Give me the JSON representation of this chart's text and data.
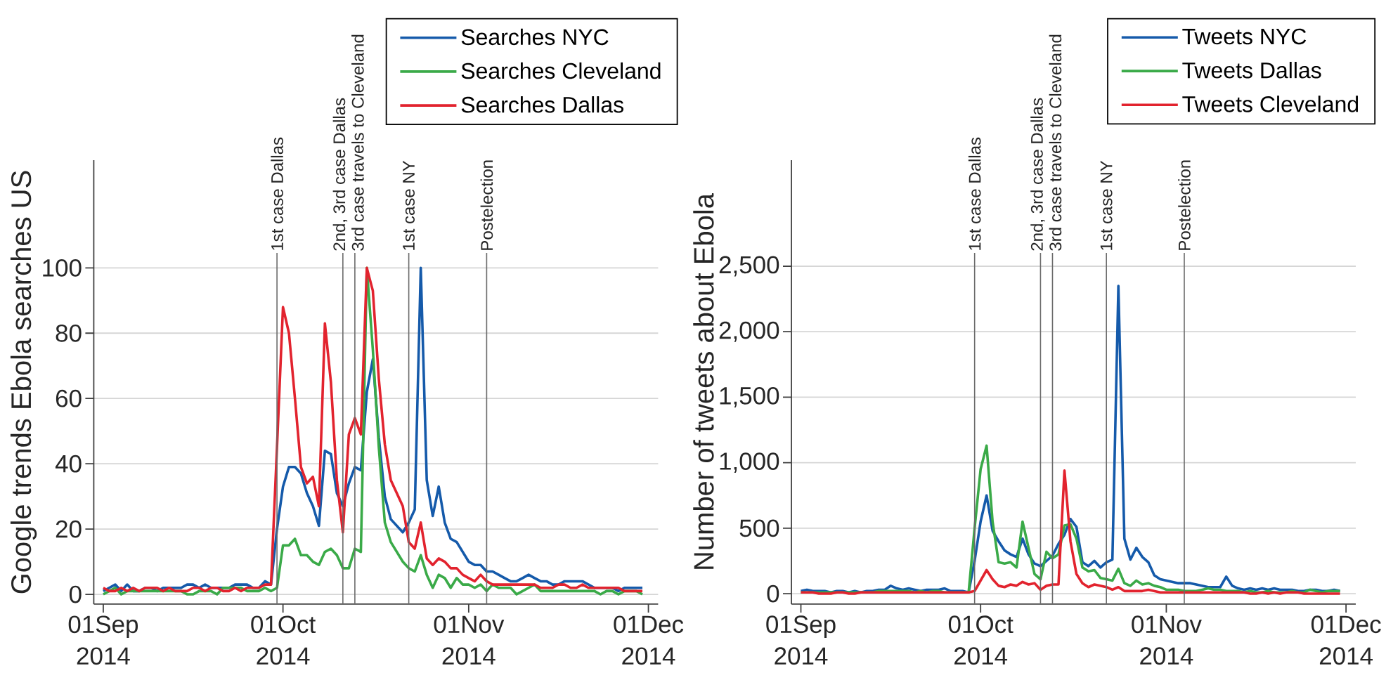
{
  "chart_data": [
    {
      "type": "line",
      "ylabel": "Google trends Ebola searches US",
      "x": [
        "2014-09-01",
        "2014-09-02",
        "2014-09-03",
        "2014-09-04",
        "2014-09-05",
        "2014-09-06",
        "2014-09-07",
        "2014-09-08",
        "2014-09-09",
        "2014-09-10",
        "2014-09-11",
        "2014-09-12",
        "2014-09-13",
        "2014-09-14",
        "2014-09-15",
        "2014-09-16",
        "2014-09-17",
        "2014-09-18",
        "2014-09-19",
        "2014-09-20",
        "2014-09-21",
        "2014-09-22",
        "2014-09-23",
        "2014-09-24",
        "2014-09-25",
        "2014-09-26",
        "2014-09-27",
        "2014-09-28",
        "2014-09-29",
        "2014-09-30",
        "2014-10-01",
        "2014-10-02",
        "2014-10-03",
        "2014-10-04",
        "2014-10-05",
        "2014-10-06",
        "2014-10-07",
        "2014-10-08",
        "2014-10-09",
        "2014-10-10",
        "2014-10-11",
        "2014-10-12",
        "2014-10-13",
        "2014-10-14",
        "2014-10-15",
        "2014-10-16",
        "2014-10-17",
        "2014-10-18",
        "2014-10-19",
        "2014-10-20",
        "2014-10-21",
        "2014-10-22",
        "2014-10-23",
        "2014-10-24",
        "2014-10-25",
        "2014-10-26",
        "2014-10-27",
        "2014-10-28",
        "2014-10-29",
        "2014-10-30",
        "2014-10-31",
        "2014-11-01",
        "2014-11-02",
        "2014-11-03",
        "2014-11-04",
        "2014-11-05",
        "2014-11-06",
        "2014-11-07",
        "2014-11-08",
        "2014-11-09",
        "2014-11-10",
        "2014-11-11",
        "2014-11-12",
        "2014-11-13",
        "2014-11-14",
        "2014-11-15",
        "2014-11-16",
        "2014-11-17",
        "2014-11-18",
        "2014-11-19",
        "2014-11-20",
        "2014-11-21",
        "2014-11-22",
        "2014-11-23",
        "2014-11-24",
        "2014-11-25",
        "2014-11-26",
        "2014-11-27",
        "2014-11-28",
        "2014-11-29",
        "2014-11-30"
      ],
      "series": [
        {
          "name": "Searches NYC",
          "color": "#155aaa",
          "values": [
            1,
            2,
            3,
            1,
            3,
            1,
            1,
            2,
            2,
            1,
            2,
            2,
            2,
            2,
            3,
            3,
            2,
            3,
            2,
            2,
            2,
            2,
            3,
            3,
            3,
            2,
            2,
            4,
            3,
            20,
            33,
            39,
            39,
            37,
            31,
            27,
            21,
            44,
            43,
            31,
            27,
            34,
            39,
            38,
            62,
            72,
            48,
            30,
            23,
            21,
            19,
            22,
            26,
            100,
            35,
            24,
            33,
            22,
            17,
            16,
            13,
            10,
            9,
            9,
            7,
            7,
            6,
            5,
            4,
            4,
            5,
            6,
            5,
            4,
            4,
            3,
            3,
            4,
            4,
            4,
            4,
            3,
            2,
            2,
            2,
            2,
            1,
            2,
            2,
            2,
            2
          ]
        },
        {
          "name": "Searches Cleveland",
          "color": "#3aaa48",
          "values": [
            0,
            1,
            2,
            0,
            1,
            1,
            1,
            1,
            1,
            1,
            1,
            1,
            1,
            1,
            0,
            0,
            1,
            1,
            1,
            0,
            2,
            2,
            2,
            2,
            1,
            1,
            1,
            2,
            1,
            2,
            15,
            15,
            17,
            12,
            12,
            10,
            9,
            13,
            14,
            12,
            8,
            8,
            14,
            13,
            100,
            75,
            45,
            22,
            16,
            13,
            10,
            8,
            7,
            12,
            6,
            2,
            6,
            5,
            2,
            5,
            3,
            3,
            2,
            3,
            1,
            3,
            2,
            2,
            2,
            0,
            1,
            2,
            3,
            1,
            1,
            1,
            1,
            1,
            1,
            1,
            1,
            1,
            1,
            0,
            1,
            1,
            0,
            1,
            1,
            1,
            0
          ]
        },
        {
          "name": "Searches Dallas",
          "color": "#e2232e",
          "values": [
            2,
            1,
            1,
            2,
            1,
            2,
            1,
            2,
            2,
            2,
            1,
            2,
            1,
            1,
            1,
            2,
            2,
            1,
            2,
            2,
            1,
            1,
            2,
            1,
            2,
            2,
            2,
            3,
            3,
            45,
            88,
            80,
            60,
            39,
            34,
            36,
            27,
            83,
            65,
            35,
            19,
            49,
            54,
            49,
            100,
            93,
            66,
            46,
            35,
            31,
            27,
            16,
            14,
            22,
            11,
            9,
            11,
            10,
            8,
            8,
            6,
            5,
            4,
            6,
            4,
            3,
            3,
            3,
            3,
            3,
            3,
            3,
            3,
            2,
            2,
            2,
            3,
            3,
            2,
            2,
            3,
            2,
            2,
            2,
            2,
            2,
            2,
            1,
            1,
            1,
            1
          ]
        }
      ],
      "xlim": [
        "2014-08-30T10:00",
        "2014-12-02T15:00"
      ],
      "ylim": [
        -3,
        133
      ],
      "xticks": [
        {
          "value": "2014-09-01",
          "label": "01Sep 2014"
        },
        {
          "value": "2014-10-01",
          "label": "01Oct 2014"
        },
        {
          "value": "2014-11-01",
          "label": "01Nov 2014"
        },
        {
          "value": "2014-12-01",
          "label": "01Dec 2014"
        }
      ],
      "yticks": [
        0,
        20,
        40,
        60,
        80,
        100
      ],
      "grid": "y",
      "legend": "top right",
      "ref_lines": [
        {
          "axis": "x",
          "value": "2014-09-30",
          "label": "1st case Dallas",
          "color": "#6b6b6b"
        },
        {
          "axis": "x",
          "value": "2014-10-11",
          "label": "2nd, 3rd case Dallas",
          "color": "#6b6b6b"
        },
        {
          "axis": "x",
          "value": "2014-10-13",
          "label": "3rd case travels to Cleveland",
          "color": "#6b6b6b"
        },
        {
          "axis": "x",
          "value": "2014-10-22",
          "label": "1st case NY",
          "color": "#6b6b6b"
        },
        {
          "axis": "x",
          "value": "2014-11-04",
          "label": "Postelection",
          "color": "#6b6b6b"
        }
      ]
    },
    {
      "type": "line",
      "ylabel": "Number of tweets about Ebola",
      "x": [
        "2014-09-01",
        "2014-09-02",
        "2014-09-03",
        "2014-09-04",
        "2014-09-05",
        "2014-09-06",
        "2014-09-07",
        "2014-09-08",
        "2014-09-09",
        "2014-09-10",
        "2014-09-11",
        "2014-09-12",
        "2014-09-13",
        "2014-09-14",
        "2014-09-15",
        "2014-09-16",
        "2014-09-17",
        "2014-09-18",
        "2014-09-19",
        "2014-09-20",
        "2014-09-21",
        "2014-09-22",
        "2014-09-23",
        "2014-09-24",
        "2014-09-25",
        "2014-09-26",
        "2014-09-27",
        "2014-09-28",
        "2014-09-29",
        "2014-09-30",
        "2014-10-01",
        "2014-10-02",
        "2014-10-03",
        "2014-10-04",
        "2014-10-05",
        "2014-10-06",
        "2014-10-07",
        "2014-10-08",
        "2014-10-09",
        "2014-10-10",
        "2014-10-11",
        "2014-10-12",
        "2014-10-13",
        "2014-10-14",
        "2014-10-15",
        "2014-10-16",
        "2014-10-17",
        "2014-10-18",
        "2014-10-19",
        "2014-10-20",
        "2014-10-21",
        "2014-10-22",
        "2014-10-23",
        "2014-10-24",
        "2014-10-25",
        "2014-10-26",
        "2014-10-27",
        "2014-10-28",
        "2014-10-29",
        "2014-10-30",
        "2014-10-31",
        "2014-11-01",
        "2014-11-02",
        "2014-11-03",
        "2014-11-04",
        "2014-11-05",
        "2014-11-06",
        "2014-11-07",
        "2014-11-08",
        "2014-11-09",
        "2014-11-10",
        "2014-11-11",
        "2014-11-12",
        "2014-11-13",
        "2014-11-14",
        "2014-11-15",
        "2014-11-16",
        "2014-11-17",
        "2014-11-18",
        "2014-11-19",
        "2014-11-20",
        "2014-11-21",
        "2014-11-22",
        "2014-11-23",
        "2014-11-24",
        "2014-11-25",
        "2014-11-26",
        "2014-11-27",
        "2014-11-28",
        "2014-11-29",
        "2014-11-30"
      ],
      "series": [
        {
          "name": "Tweets NYC",
          "color": "#155aaa",
          "values": [
            20,
            30,
            20,
            20,
            20,
            10,
            20,
            20,
            10,
            20,
            10,
            20,
            20,
            30,
            30,
            60,
            40,
            30,
            40,
            30,
            20,
            30,
            30,
            30,
            40,
            20,
            20,
            20,
            10,
            250,
            550,
            750,
            480,
            400,
            330,
            300,
            280,
            420,
            300,
            230,
            210,
            250,
            290,
            380,
            450,
            570,
            510,
            240,
            210,
            250,
            200,
            240,
            260,
            2350,
            420,
            260,
            350,
            280,
            240,
            140,
            110,
            100,
            90,
            80,
            80,
            80,
            70,
            60,
            50,
            50,
            50,
            130,
            60,
            40,
            30,
            40,
            30,
            40,
            30,
            40,
            30,
            30,
            30,
            20,
            20,
            30,
            30,
            20,
            20,
            30,
            20
          ]
        },
        {
          "name": "Tweets Dallas",
          "color": "#3aaa48",
          "values": [
            10,
            10,
            10,
            10,
            10,
            10,
            10,
            10,
            10,
            10,
            10,
            10,
            10,
            20,
            20,
            20,
            20,
            20,
            20,
            10,
            20,
            10,
            20,
            20,
            10,
            10,
            10,
            10,
            10,
            500,
            950,
            1130,
            550,
            240,
            230,
            240,
            200,
            550,
            350,
            150,
            110,
            320,
            270,
            300,
            520,
            530,
            420,
            200,
            170,
            180,
            120,
            110,
            100,
            190,
            80,
            60,
            100,
            70,
            80,
            60,
            50,
            30,
            30,
            30,
            20,
            20,
            20,
            30,
            40,
            30,
            30,
            20,
            20,
            20,
            10,
            20,
            10,
            10,
            20,
            10,
            10,
            10,
            20,
            10,
            10,
            30,
            20,
            10,
            20,
            20,
            20
          ]
        },
        {
          "name": "Tweets Cleveland",
          "color": "#e2232e",
          "values": [
            10,
            10,
            10,
            0,
            0,
            0,
            10,
            10,
            0,
            0,
            10,
            10,
            10,
            10,
            10,
            10,
            10,
            10,
            10,
            10,
            10,
            10,
            10,
            10,
            10,
            10,
            10,
            10,
            10,
            20,
            100,
            180,
            110,
            60,
            50,
            70,
            60,
            90,
            70,
            80,
            30,
            60,
            70,
            70,
            940,
            400,
            150,
            80,
            50,
            70,
            60,
            50,
            30,
            50,
            20,
            20,
            20,
            20,
            30,
            20,
            10,
            10,
            10,
            10,
            10,
            10,
            10,
            10,
            10,
            10,
            10,
            10,
            10,
            10,
            10,
            0,
            0,
            10,
            0,
            10,
            0,
            10,
            10,
            10,
            0,
            0,
            0,
            0,
            0,
            0,
            0
          ]
        }
      ],
      "xlim": [
        "2014-08-30T10:00",
        "2014-12-02T15:00"
      ],
      "ylim": [
        -80,
        3310
      ],
      "xticks": [
        {
          "value": "2014-09-01",
          "label": "01Sep 2014"
        },
        {
          "value": "2014-10-01",
          "label": "01Oct 2014"
        },
        {
          "value": "2014-11-01",
          "label": "01Nov 2014"
        },
        {
          "value": "2014-12-01",
          "label": "01Dec 2014"
        }
      ],
      "yticks": [
        0,
        500,
        {
          "value": 1000,
          "label": "1,000"
        },
        {
          "value": 1500,
          "label": "1,500"
        },
        {
          "value": 2000,
          "label": "2,000"
        },
        {
          "value": 2500,
          "label": "2,500"
        }
      ],
      "grid": "y",
      "legend": "top right",
      "ref_lines": [
        {
          "axis": "x",
          "value": "2014-09-30",
          "label": "1st case Dallas",
          "color": "#6b6b6b"
        },
        {
          "axis": "x",
          "value": "2014-10-11",
          "label": "2nd, 3rd case Dallas",
          "color": "#6b6b6b"
        },
        {
          "axis": "x",
          "value": "2014-10-13",
          "label": "3rd case travels to Cleveland",
          "color": "#6b6b6b"
        },
        {
          "axis": "x",
          "value": "2014-10-22",
          "label": "1st case NY",
          "color": "#6b6b6b"
        },
        {
          "axis": "x",
          "value": "2014-11-04",
          "label": "Postelection",
          "color": "#6b6b6b"
        }
      ]
    }
  ]
}
